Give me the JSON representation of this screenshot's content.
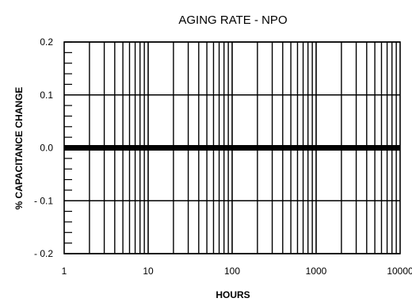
{
  "chart_data": {
    "type": "line",
    "title": "AGING RATE - NPO",
    "xlabel": "HOURS",
    "ylabel": "% CAPACITANCE CHANGE",
    "x_scale": "log",
    "xlim": [
      1,
      10000
    ],
    "ylim": [
      -0.2,
      0.2
    ],
    "x_tick_labels": [
      "1",
      "10",
      "100",
      "1000",
      "10000"
    ],
    "y_tick_labels": [
      "0.2",
      "0.1",
      "0.0",
      "- 0.1",
      "- 0.2"
    ],
    "y_ticks": [
      0.2,
      0.1,
      0.0,
      -0.1,
      -0.2
    ],
    "grid": true,
    "series": [
      {
        "x": [
          1,
          10000
        ],
        "y": [
          0.0,
          0.0
        ]
      }
    ],
    "colors": {
      "line": "#000000",
      "grid": "#000000"
    }
  }
}
